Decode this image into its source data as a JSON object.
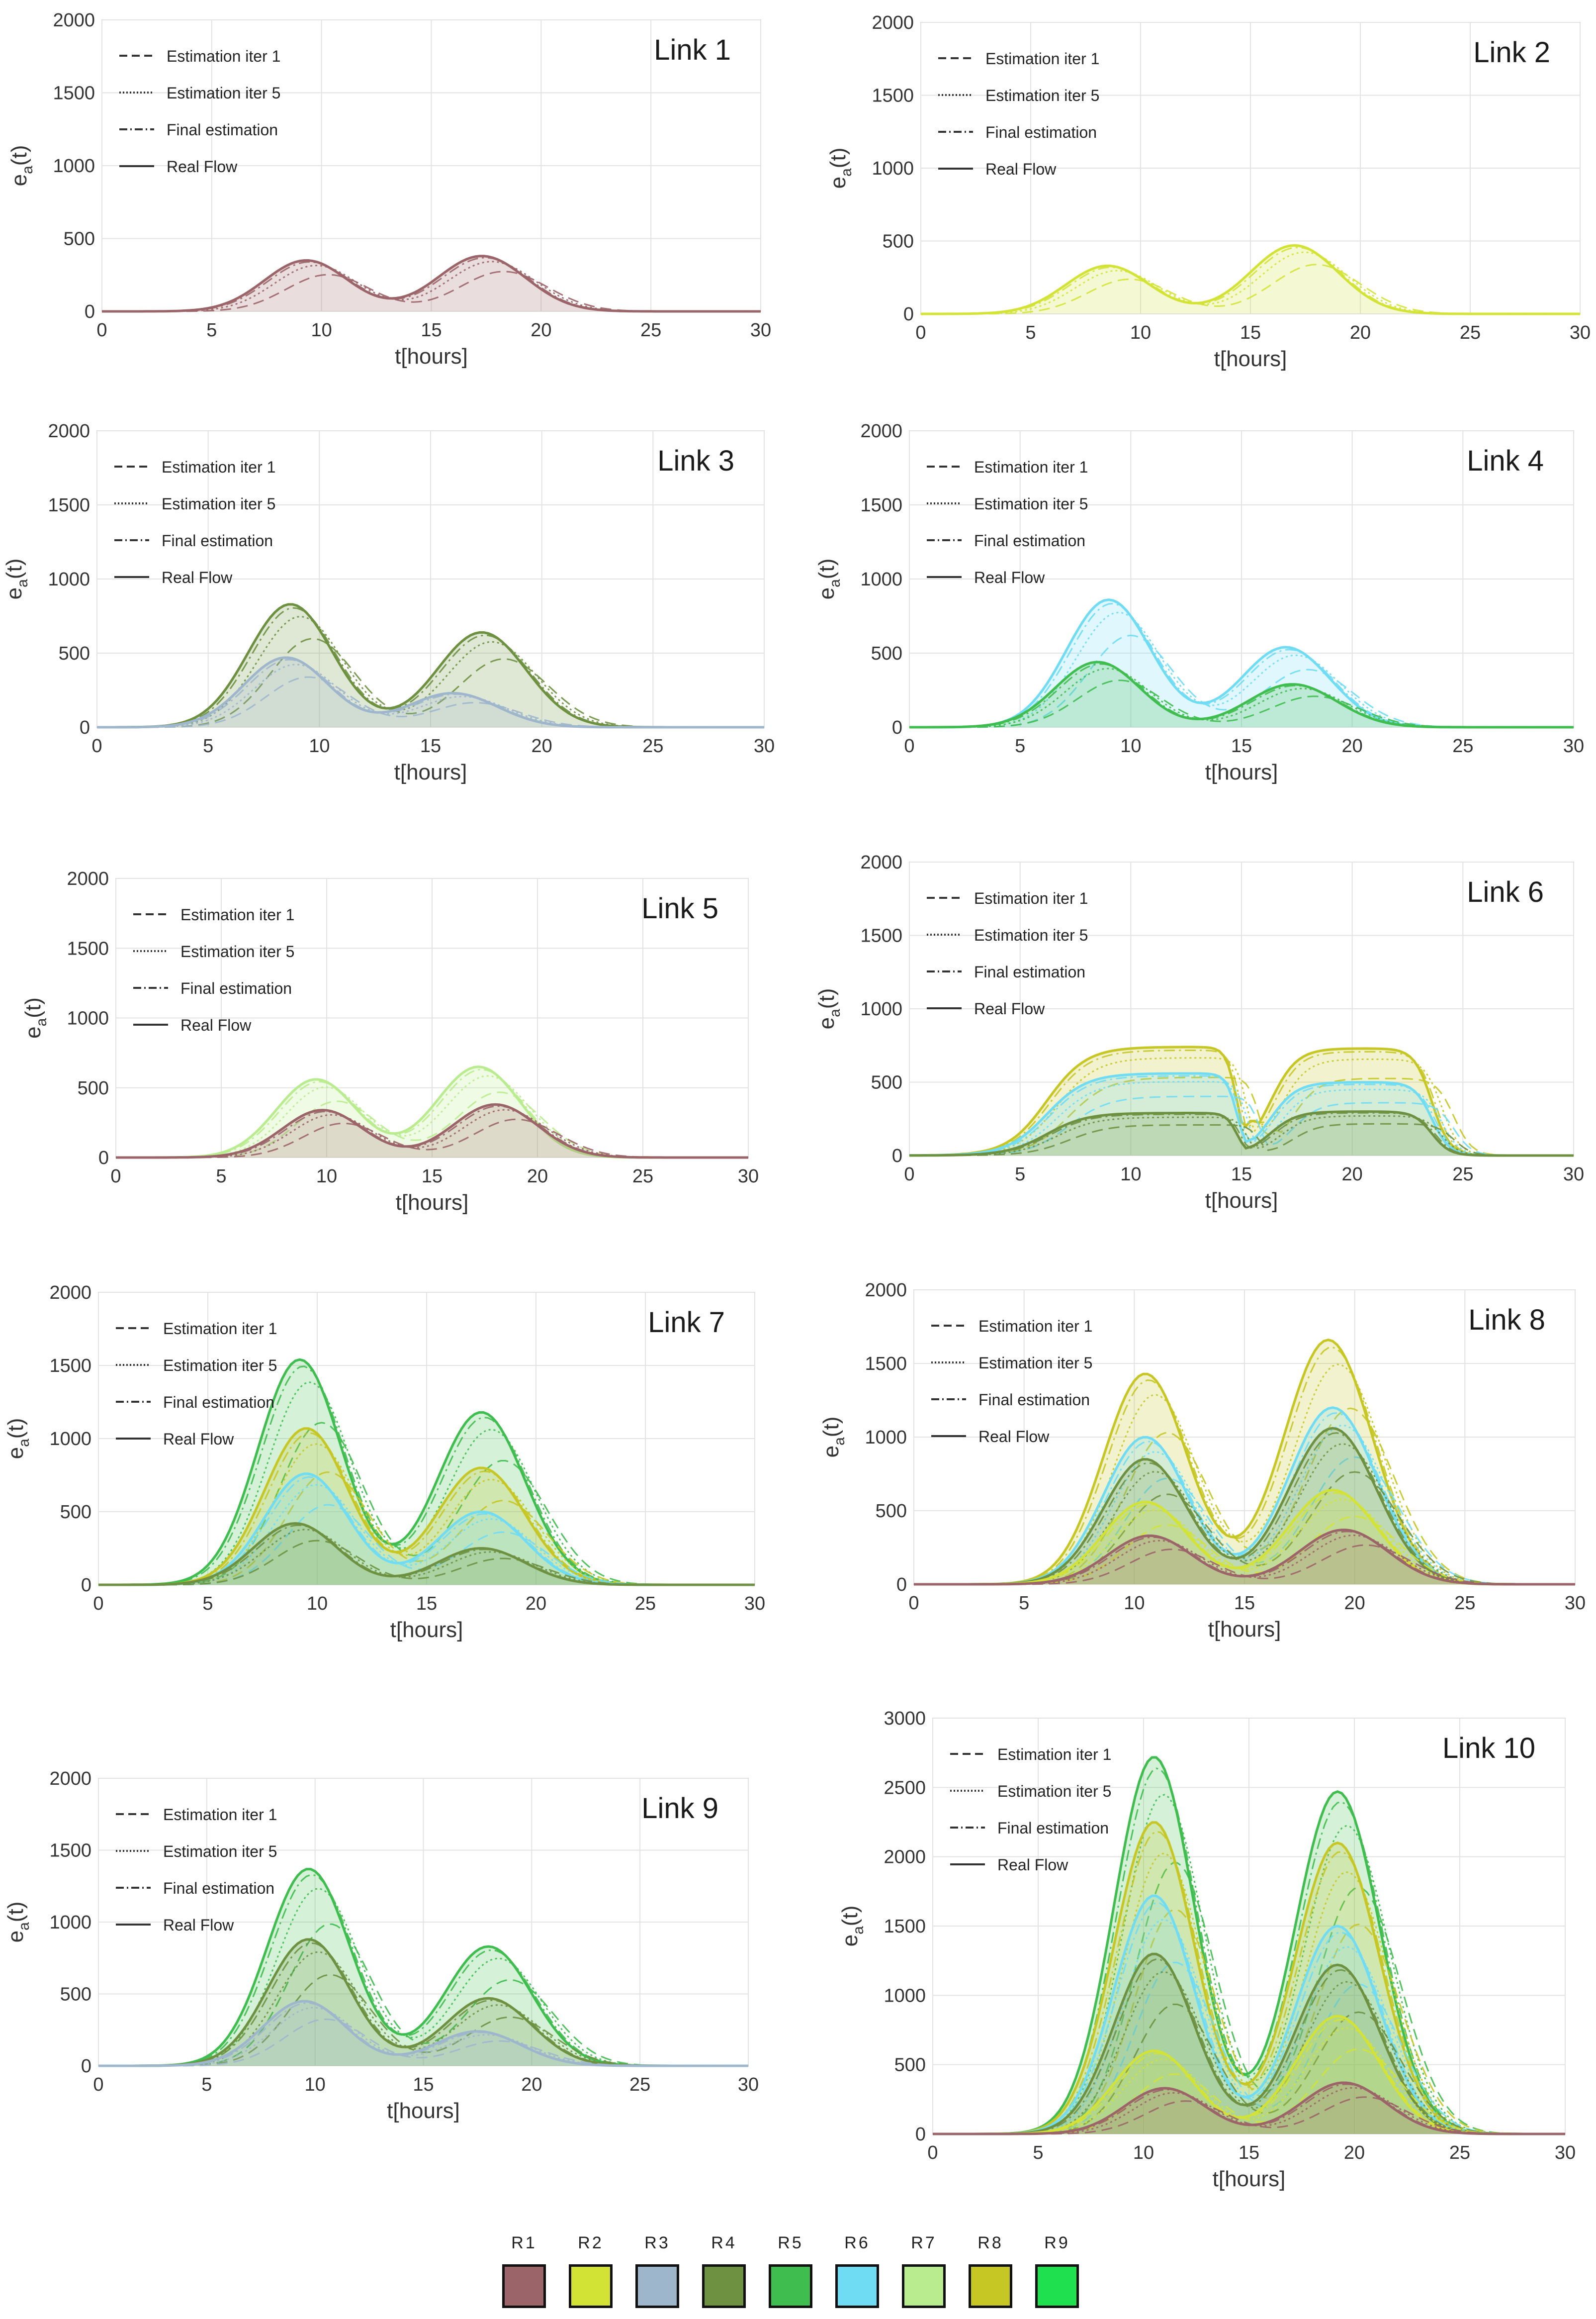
{
  "y_axis_label": "e",
  "y_axis_subscript": "a",
  "y_axis_suffix": "(t)",
  "x_axis_label": "t[hours]",
  "line_legend": [
    {
      "label": "Estimation iter 1",
      "dash": "dashed"
    },
    {
      "label": "Estimation iter 5",
      "dash": "dotted"
    },
    {
      "label": "Final estimation",
      "dash": "dashdot"
    },
    {
      "label": "Real Flow",
      "dash": "solid"
    }
  ],
  "routes": [
    {
      "name": "R1",
      "color": "#9b6468"
    },
    {
      "name": "R2",
      "color": "#d3e336"
    },
    {
      "name": "R3",
      "color": "#9eb6cc"
    },
    {
      "name": "R4",
      "color": "#6d9140"
    },
    {
      "name": "R5",
      "color": "#3fbd4f"
    },
    {
      "name": "R6",
      "color": "#6fdcf4"
    },
    {
      "name": "R7",
      "color": "#b9ec8e"
    },
    {
      "name": "R8",
      "color": "#c6c624"
    },
    {
      "name": "R9",
      "color": "#1fe04f"
    }
  ],
  "chart_data": [
    {
      "type": "area",
      "title": "Link 1",
      "xlabel": "t[hours]",
      "ylabel": "e_a(t)",
      "xlim": [
        0,
        30
      ],
      "ylim": [
        0,
        2000
      ],
      "xticks": [
        0,
        5,
        10,
        15,
        20,
        25,
        30
      ],
      "yticks": [
        0,
        500,
        1000,
        1500,
        2000
      ],
      "grid": true,
      "legend": "top-left",
      "series": [
        {
          "name": "R1",
          "am_peak_time": 9.3,
          "am_peak": 350,
          "pm_peak_time": 17.3,
          "pm_peak": 380
        }
      ]
    },
    {
      "type": "area",
      "title": "Link 2",
      "xlabel": "t[hours]",
      "ylabel": "e_a(t)",
      "xlim": [
        0,
        30
      ],
      "ylim": [
        0,
        2000
      ],
      "xticks": [
        0,
        5,
        10,
        15,
        20,
        25,
        30
      ],
      "yticks": [
        0,
        500,
        1000,
        1500,
        2000
      ],
      "grid": true,
      "legend": "top-left",
      "series": [
        {
          "name": "R2",
          "am_peak_time": 8.5,
          "am_peak": 330,
          "pm_peak_time": 17.0,
          "pm_peak": 470
        }
      ]
    },
    {
      "type": "area",
      "title": "Link 3",
      "xlabel": "t[hours]",
      "ylabel": "e_a(t)",
      "xlim": [
        0,
        30
      ],
      "ylim": [
        0,
        2000
      ],
      "xticks": [
        0,
        5,
        10,
        15,
        20,
        25,
        30
      ],
      "yticks": [
        0,
        500,
        1000,
        1500,
        2000
      ],
      "grid": true,
      "legend": "top-left",
      "series": [
        {
          "name": "R4",
          "am_peak_time": 8.7,
          "am_peak": 830,
          "pm_peak_time": 17.3,
          "pm_peak": 640
        },
        {
          "name": "R3",
          "am_peak_time": 8.5,
          "am_peak": 470,
          "pm_peak_time": 16.0,
          "pm_peak": 230
        }
      ]
    },
    {
      "type": "area",
      "title": "Link 4",
      "xlabel": "t[hours]",
      "ylabel": "e_a(t)",
      "xlim": [
        0,
        30
      ],
      "ylim": [
        0,
        2000
      ],
      "xticks": [
        0,
        5,
        10,
        15,
        20,
        25,
        30
      ],
      "yticks": [
        0,
        500,
        1000,
        1500,
        2000
      ],
      "grid": true,
      "legend": "top-left",
      "series": [
        {
          "name": "R6",
          "am_peak_time": 9.0,
          "am_peak": 860,
          "pm_peak_time": 17.0,
          "pm_peak": 540
        },
        {
          "name": "R5",
          "am_peak_time": 8.5,
          "am_peak": 440,
          "pm_peak_time": 17.3,
          "pm_peak": 290
        }
      ]
    },
    {
      "type": "area",
      "title": "Link 5",
      "xlabel": "t[hours]",
      "ylabel": "e_a(t)",
      "xlim": [
        0,
        30
      ],
      "ylim": [
        0,
        2000
      ],
      "xticks": [
        0,
        5,
        10,
        15,
        20,
        25,
        30
      ],
      "yticks": [
        0,
        500,
        1000,
        1500,
        2000
      ],
      "grid": true,
      "legend": "top-left",
      "series": [
        {
          "name": "R7",
          "am_peak_time": 9.5,
          "am_peak": 560,
          "pm_peak_time": 17.2,
          "pm_peak": 650
        },
        {
          "name": "R1",
          "am_peak_time": 9.8,
          "am_peak": 340,
          "pm_peak_time": 18.0,
          "pm_peak": 380
        }
      ]
    },
    {
      "type": "area",
      "title": "Link 6",
      "xlabel": "t[hours]",
      "ylabel": "e_a(t)",
      "xlim": [
        0,
        30
      ],
      "ylim": [
        0,
        2000
      ],
      "xticks": [
        0,
        5,
        10,
        15,
        20,
        25,
        30
      ],
      "yticks": [
        0,
        500,
        1000,
        1500,
        2000
      ],
      "grid": true,
      "legend": "top-left",
      "series": [
        {
          "name": "R8",
          "am_plateau": 740,
          "pm_plateau": 730,
          "trough": 240
        },
        {
          "name": "R6",
          "am_plateau": 560,
          "pm_plateau": 500,
          "trough": 110
        },
        {
          "name": "R4",
          "am_plateau": 290,
          "pm_plateau": 300,
          "trough": 60
        }
      ]
    },
    {
      "type": "area",
      "title": "Link 7",
      "xlabel": "t[hours]",
      "ylabel": "e_a(t)",
      "xlim": [
        0,
        30
      ],
      "ylim": [
        0,
        2000
      ],
      "xticks": [
        0,
        5,
        10,
        15,
        20,
        25,
        30
      ],
      "yticks": [
        0,
        500,
        1000,
        1500,
        2000
      ],
      "grid": true,
      "legend": "top-left",
      "series": [
        {
          "name": "R5",
          "am_peak_time": 9.2,
          "am_peak": 1540,
          "pm_peak_time": 17.5,
          "pm_peak": 1180
        },
        {
          "name": "R8",
          "am_peak_time": 9.5,
          "am_peak": 1070,
          "pm_peak_time": 17.5,
          "pm_peak": 800
        },
        {
          "name": "R6",
          "am_peak_time": 9.5,
          "am_peak": 760,
          "pm_peak_time": 17.5,
          "pm_peak": 500
        },
        {
          "name": "R4",
          "am_peak_time": 9.0,
          "am_peak": 420,
          "pm_peak_time": 17.5,
          "pm_peak": 250
        }
      ]
    },
    {
      "type": "area",
      "title": "Link 8",
      "xlabel": "t[hours]",
      "ylabel": "e_a(t)",
      "xlim": [
        0,
        30
      ],
      "ylim": [
        0,
        2000
      ],
      "xticks": [
        0,
        5,
        10,
        15,
        20,
        25,
        30
      ],
      "yticks": [
        0,
        500,
        1000,
        1500,
        2000
      ],
      "grid": true,
      "legend": "top-left",
      "series": [
        {
          "name": "R8",
          "am_peak_time": 10.5,
          "am_peak": 1430,
          "pm_peak_time": 18.8,
          "pm_peak": 1660
        },
        {
          "name": "R6",
          "am_peak_time": 10.5,
          "am_peak": 1000,
          "pm_peak_time": 19.0,
          "pm_peak": 1200
        },
        {
          "name": "R4",
          "am_peak_time": 10.5,
          "am_peak": 850,
          "pm_peak_time": 19.0,
          "pm_peak": 1060
        },
        {
          "name": "R2",
          "am_peak_time": 10.5,
          "am_peak": 560,
          "pm_peak_time": 19.0,
          "pm_peak": 640
        },
        {
          "name": "R1",
          "am_peak_time": 10.7,
          "am_peak": 330,
          "pm_peak_time": 19.5,
          "pm_peak": 370
        }
      ]
    },
    {
      "type": "area",
      "title": "Link 9",
      "xlabel": "t[hours]",
      "ylabel": "e_a(t)",
      "xlim": [
        0,
        30
      ],
      "ylim": [
        0,
        2000
      ],
      "xticks": [
        0,
        5,
        10,
        15,
        20,
        25,
        30
      ],
      "yticks": [
        0,
        500,
        1000,
        1500,
        2000
      ],
      "grid": true,
      "legend": "top-left",
      "series": [
        {
          "name": "R5",
          "am_peak_time": 9.7,
          "am_peak": 1370,
          "pm_peak_time": 18.0,
          "pm_peak": 830
        },
        {
          "name": "R4",
          "am_peak_time": 9.7,
          "am_peak": 880,
          "pm_peak_time": 18.0,
          "pm_peak": 470
        },
        {
          "name": "R3",
          "am_peak_time": 9.5,
          "am_peak": 450,
          "pm_peak_time": 17.5,
          "pm_peak": 240
        }
      ]
    },
    {
      "type": "area",
      "title": "Link 10",
      "xlabel": "t[hours]",
      "ylabel": "e_a(t)",
      "xlim": [
        0,
        30
      ],
      "ylim": [
        0,
        3000
      ],
      "xticks": [
        0,
        5,
        10,
        15,
        20,
        25,
        30
      ],
      "yticks": [
        0,
        500,
        1000,
        1500,
        2000,
        2500,
        3000
      ],
      "grid": true,
      "legend": "top-left",
      "series": [
        {
          "name": "R5",
          "am_peak_time": 10.5,
          "am_peak": 2720,
          "pm_peak_time": 19.2,
          "pm_peak": 2470
        },
        {
          "name": "R8",
          "am_peak_time": 10.5,
          "am_peak": 2250,
          "pm_peak_time": 19.2,
          "pm_peak": 2100
        },
        {
          "name": "R6",
          "am_peak_time": 10.5,
          "am_peak": 1720,
          "pm_peak_time": 19.2,
          "pm_peak": 1500
        },
        {
          "name": "R4",
          "am_peak_time": 10.5,
          "am_peak": 1300,
          "pm_peak_time": 19.2,
          "pm_peak": 1220
        },
        {
          "name": "R2",
          "am_peak_time": 10.5,
          "am_peak": 600,
          "pm_peak_time": 19.2,
          "pm_peak": 850
        },
        {
          "name": "R1",
          "am_peak_time": 11.0,
          "am_peak": 330,
          "pm_peak_time": 19.5,
          "pm_peak": 370
        }
      ]
    }
  ]
}
